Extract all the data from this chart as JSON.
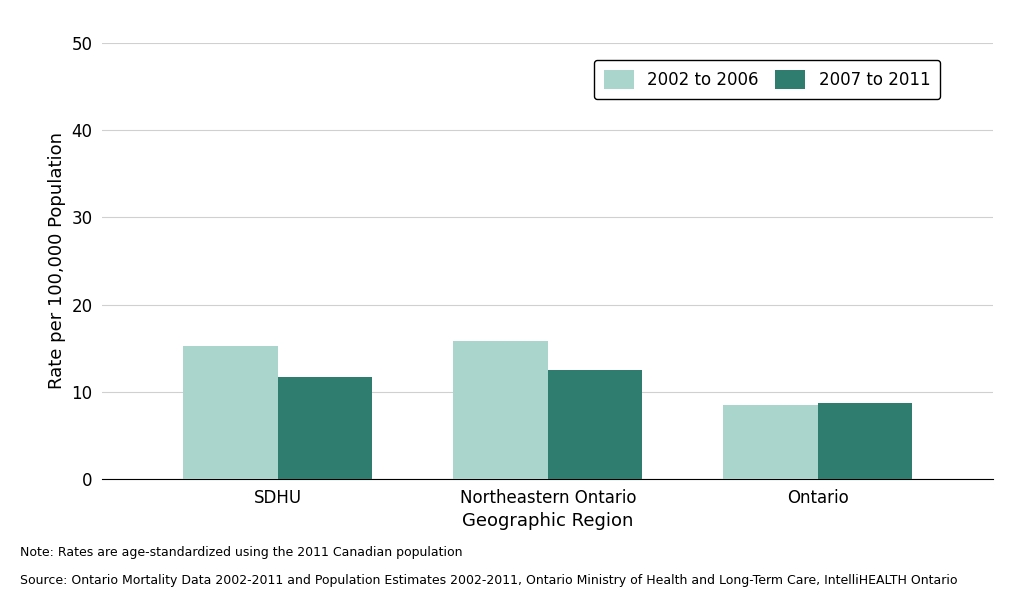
{
  "categories": [
    "SDHU",
    "Northeastern Ontario",
    "Ontario"
  ],
  "series": {
    "2002 to 2006": [
      15.3,
      15.8,
      8.5
    ],
    "2007 to 2011": [
      11.7,
      12.5,
      8.7
    ]
  },
  "color_2002": "#aad5cc",
  "color_2007": "#2e7d6e",
  "ylabel": "Rate per 100,000 Population",
  "xlabel": "Geographic Region",
  "ylim": [
    0,
    50
  ],
  "yticks": [
    0,
    10,
    20,
    30,
    40,
    50
  ],
  "legend_labels": [
    "2002 to 2006",
    "2007 to 2011"
  ],
  "note_line1": "Note: Rates are age-standardized using the 2011 Canadian population",
  "note_line2": "Source: Ontario Mortality Data 2002-2011 and Population Estimates 2002-2011, Ontario Ministry of Health and Long-Term Care, IntelliHEALTH Ontario",
  "background_color": "#ffffff",
  "axis_fontsize": 13,
  "tick_fontsize": 12,
  "legend_fontsize": 12,
  "note_fontsize": 9,
  "bar_width": 0.35,
  "grid_color": "#d0d0d0"
}
